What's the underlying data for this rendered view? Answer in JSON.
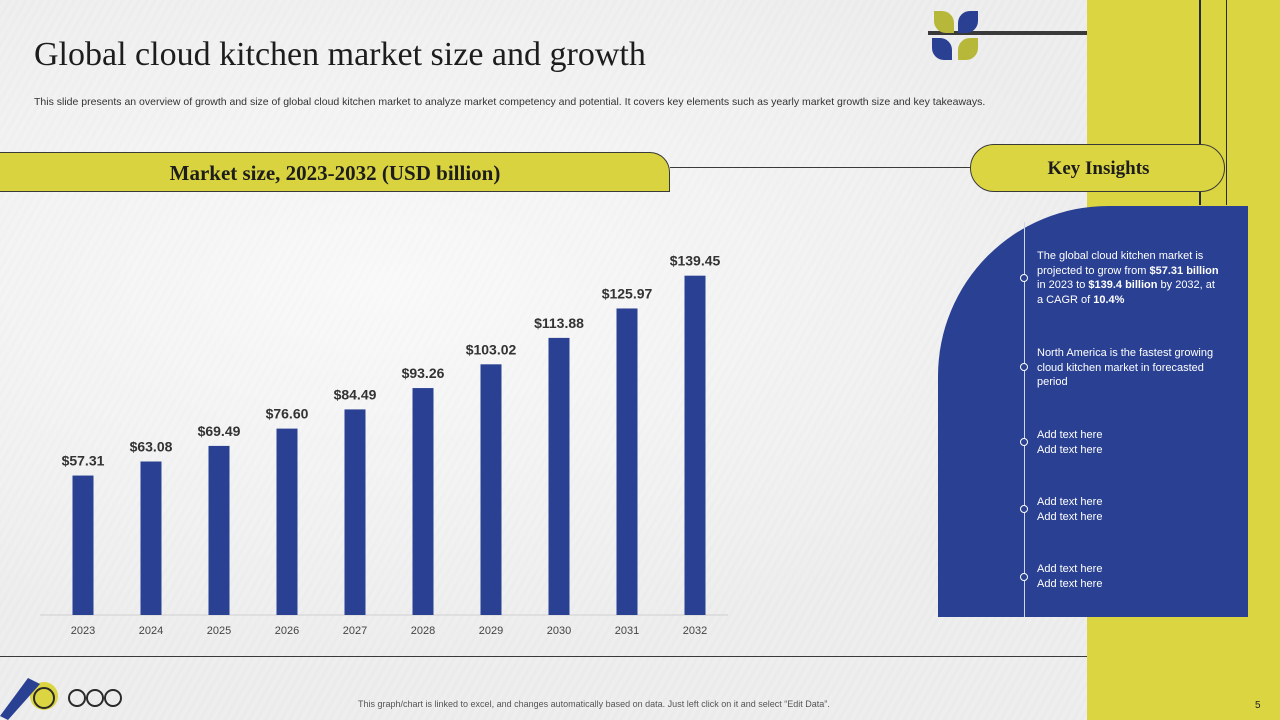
{
  "title": "Global cloud kitchen market size and growth",
  "subtitle": "This slide presents an overview of growth and size of global cloud kitchen market to analyze market competency and potential. It covers key elements such as yearly market growth size and key takeaways.",
  "chart_header": "Market size, 2023-2032 (USD billion)",
  "key_insights": {
    "header": "Key Insights",
    "items": [
      {
        "parts": [
          {
            "t": "The global cloud kitchen market is projected to grow from ",
            "b": false
          },
          {
            "t": "$57.31 billion",
            "b": true
          },
          {
            "t": "  in 2023 to ",
            "b": false
          },
          {
            "t": "$139.4 billion",
            "b": true
          },
          {
            "t": " by 2032, at a CAGR of ",
            "b": false
          },
          {
            "t": "10.4%",
            "b": true
          }
        ]
      },
      {
        "parts": [
          {
            "t": "North America is the fastest growing cloud kitchen market in forecasted period",
            "b": false
          }
        ]
      },
      {
        "parts": [
          {
            "t": "Add text here Add text here",
            "b": false
          }
        ]
      },
      {
        "parts": [
          {
            "t": "Add text here Add text here",
            "b": false
          }
        ]
      },
      {
        "parts": [
          {
            "t": "Add text here Add text here",
            "b": false
          }
        ]
      }
    ]
  },
  "chart_data": {
    "type": "bar",
    "categories": [
      "2023",
      "2024",
      "2025",
      "2026",
      "2027",
      "2028",
      "2029",
      "2030",
      "2031",
      "2032"
    ],
    "values": [
      57.31,
      63.08,
      69.49,
      76.6,
      84.49,
      93.26,
      103.02,
      113.88,
      125.97,
      139.45
    ],
    "labels": [
      "$57.31",
      "$63.08",
      "$69.49",
      "$76.60",
      "$84.49",
      "$93.26",
      "$103.02",
      "$113.88",
      "$125.97",
      "$139.45"
    ],
    "title": "Market size, 2023-2032 (USD billion)",
    "ylim": [
      0,
      150
    ],
    "grid": false,
    "bar_color": "#2a4193"
  },
  "footer_note": "This graph/chart is linked to excel, and changes automatically based on data. Just left click on it and select “Edit Data”.",
  "page_number": "5",
  "colors": {
    "accent_yellow": "#dcd542",
    "accent_blue": "#2a4193"
  }
}
